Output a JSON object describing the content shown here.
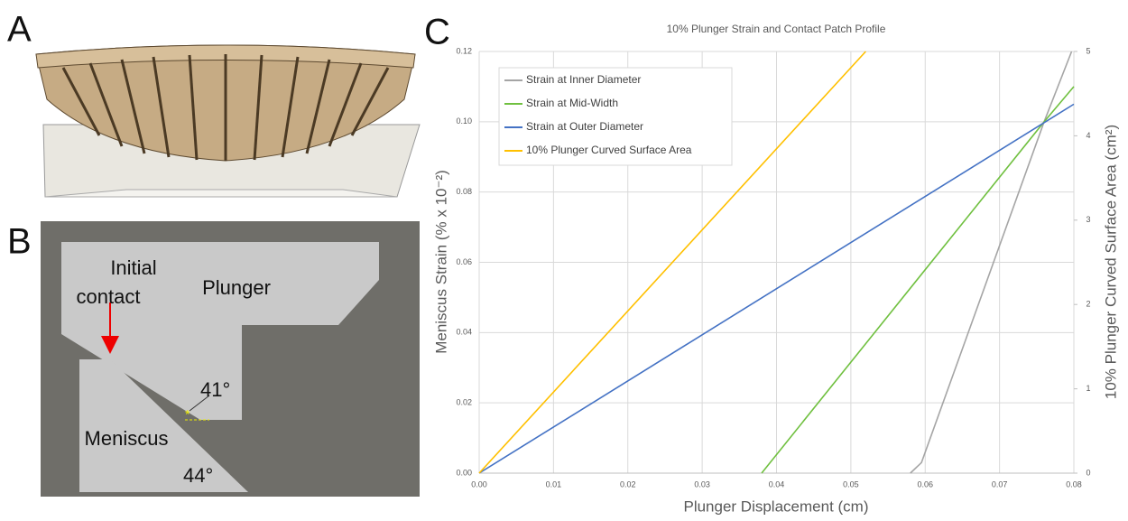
{
  "panels": {
    "a": "A",
    "b": "B",
    "c": "C"
  },
  "diagram": {
    "initial_line1": "Initial",
    "initial_line2": "contact",
    "plunger": "Plunger",
    "angle_plunger": "41°",
    "meniscus": "Meniscus",
    "angle_meniscus": "44°"
  },
  "chart_data": {
    "type": "line",
    "title": "10% Plunger Strain and Contact Patch Profile",
    "x_label": "Plunger Displacement (cm)",
    "y_label": "Meniscus Strain (% x 10⁻²)",
    "y2_label": "10% Plunger Curved Surface Area (cm²)",
    "xlim": [
      0,
      0.08
    ],
    "xticks": [
      {
        "value": 0,
        "label": "0.00"
      },
      {
        "value": 0.01,
        "label": "0.01"
      },
      {
        "value": 0.02,
        "label": "0.02"
      },
      {
        "value": 0.03,
        "label": "0.03"
      },
      {
        "value": 0.04,
        "label": "0.04"
      },
      {
        "value": 0.05,
        "label": "0.05"
      },
      {
        "value": 0.06,
        "label": "0.06"
      },
      {
        "value": 0.07,
        "label": "0.07"
      },
      {
        "value": 0.08,
        "label": "0.08"
      }
    ],
    "ylim": [
      0,
      0.12
    ],
    "yticks": [
      {
        "value": 0,
        "label": "0.00"
      },
      {
        "value": 0.02,
        "label": "0.02"
      },
      {
        "value": 0.04,
        "label": "0.04"
      },
      {
        "value": 0.06,
        "label": "0.06"
      },
      {
        "value": 0.08,
        "label": "0.08"
      },
      {
        "value": 0.1,
        "label": "0.10"
      },
      {
        "value": 0.12,
        "label": "0.12"
      }
    ],
    "y2lim": [
      0,
      5
    ],
    "y2ticks": [
      0,
      1,
      2,
      3,
      4,
      5
    ],
    "grid": true,
    "legend": "upper-left",
    "series": [
      {
        "name": "Strain at Inner Diameter",
        "color": "#a5a5a5",
        "x": [
          0.058,
          0.0595,
          0.076,
          0.0797
        ],
        "values": [
          0,
          0.003,
          0.1,
          0.12
        ]
      },
      {
        "name": "Strain at Mid-Width",
        "color": "#70c040",
        "x": [
          0.038,
          0.076,
          0.08
        ],
        "values": [
          0,
          0.1,
          0.11
        ]
      },
      {
        "name": "Strain at Outer Diameter",
        "color": "#4472c4",
        "x": [
          0,
          0.08
        ],
        "values": [
          0,
          0.105
        ]
      },
      {
        "name": "10% Plunger Curved Surface Area",
        "color": "#ffc000",
        "axis": "y2",
        "x": [
          0,
          0.052
        ],
        "values": [
          0,
          5
        ]
      }
    ]
  }
}
